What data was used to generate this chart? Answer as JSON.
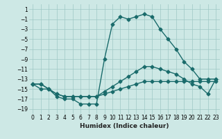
{
  "xlabel": "Humidex (Indice chaleur)",
  "xlim": [
    -0.5,
    23.5
  ],
  "ylim": [
    -20,
    2
  ],
  "yticks": [
    1,
    -1,
    -3,
    -5,
    -7,
    -9,
    -11,
    -13,
    -15,
    -17,
    -19
  ],
  "xticks": [
    0,
    1,
    2,
    3,
    4,
    5,
    6,
    7,
    8,
    9,
    10,
    11,
    12,
    13,
    14,
    15,
    16,
    17,
    18,
    19,
    20,
    21,
    22,
    23
  ],
  "background_color": "#cde8e5",
  "grid_color": "#9fc8c4",
  "line_color": "#1a6b6b",
  "line1_y": [
    -14,
    -15,
    -15,
    -16.5,
    -17,
    -17,
    -18,
    -18,
    -18,
    -9,
    -2,
    -0.5,
    -1,
    -0.5,
    0,
    -0.5,
    -3,
    -5,
    -7,
    -9.5,
    -11,
    -13,
    -13,
    -13
  ],
  "line2_y": [
    -14,
    -14,
    -15,
    -16,
    -16.5,
    -16.5,
    -16.5,
    -16.5,
    -16.5,
    -15.5,
    -14.5,
    -13.5,
    -12.5,
    -11.5,
    -10.5,
    -10.5,
    -11,
    -11.5,
    -12,
    -13,
    -14,
    -14.5,
    -16,
    -13
  ],
  "line3_y": [
    -14,
    -14,
    -15,
    -16,
    -16.5,
    -16.5,
    -16.5,
    -16.5,
    -16.5,
    -16,
    -15.5,
    -15,
    -14.5,
    -14,
    -13.5,
    -13.5,
    -13.5,
    -13.5,
    -13.5,
    -13.5,
    -13.5,
    -13.5,
    -13.5,
    -13.5
  ],
  "marker": "D",
  "markersize": 2.5,
  "linewidth": 1.0
}
